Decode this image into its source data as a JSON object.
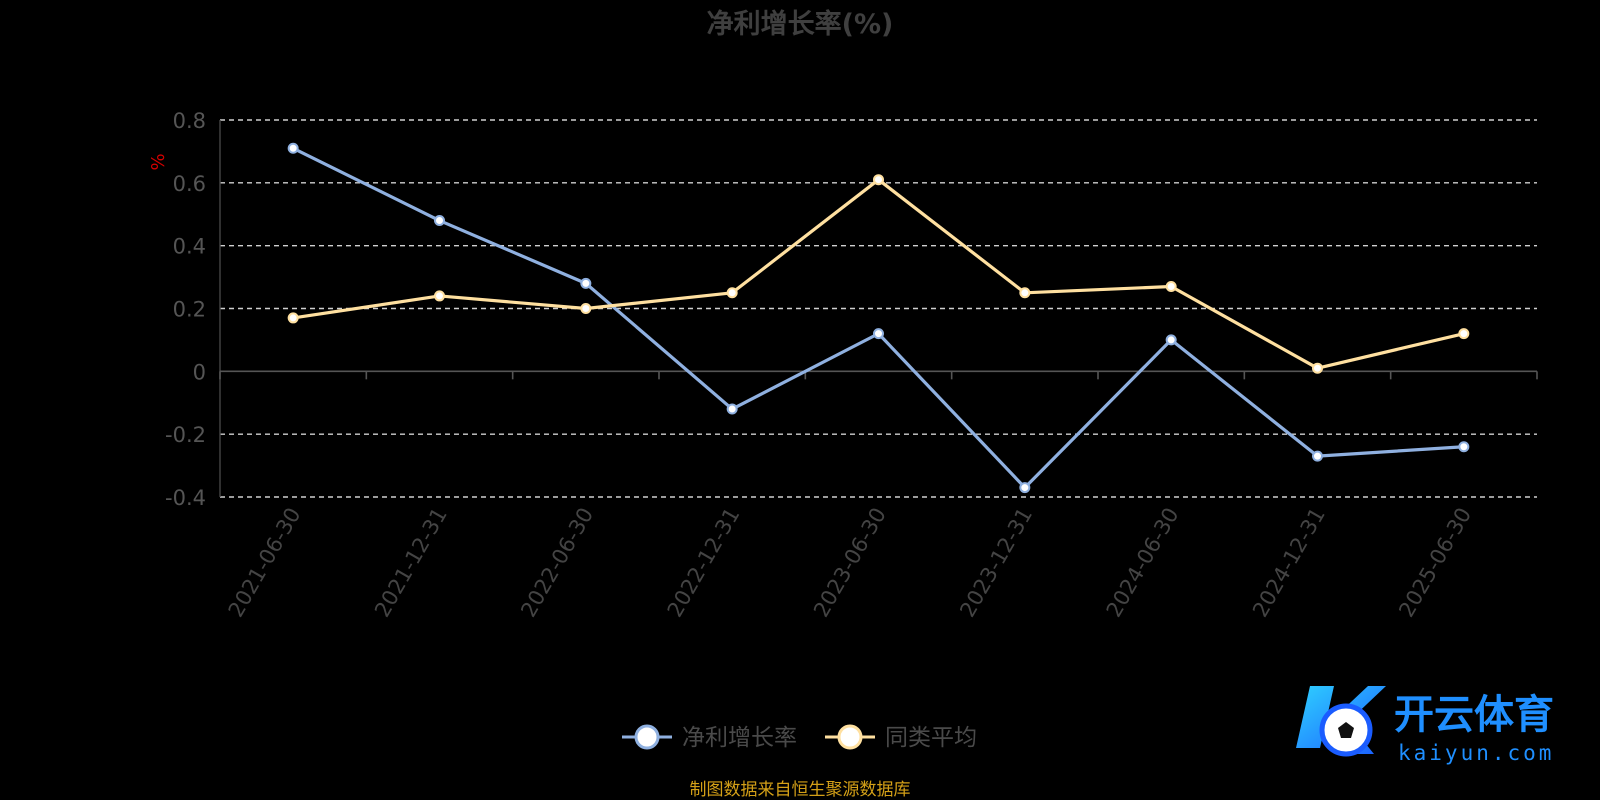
{
  "chart_data": {
    "type": "line",
    "title": "净利增长率(%)",
    "unit_label": "%",
    "categories": [
      "2021-06-30",
      "2021-12-31",
      "2022-06-30",
      "2022-12-31",
      "2023-06-30",
      "2023-12-31",
      "2024-06-30",
      "2024-12-31",
      "2025-06-30"
    ],
    "series": [
      {
        "name": "净利增长率",
        "color": "#8fb0e0",
        "values": [
          0.71,
          0.48,
          0.28,
          -0.12,
          0.12,
          -0.37,
          0.1,
          -0.27,
          -0.24
        ]
      },
      {
        "name": "同类平均",
        "color": "#ffe0a0",
        "values": [
          0.17,
          0.24,
          0.2,
          0.25,
          0.61,
          0.25,
          0.27,
          0.01,
          0.12
        ]
      }
    ],
    "yticks": [
      0.8,
      0.6,
      0.4,
      0.2,
      0,
      -0.2,
      -0.4
    ],
    "ytick_labels": [
      "0.8",
      "0.6",
      "0.4",
      "0.2",
      "0",
      "-0.2",
      "-0.4"
    ],
    "ylim": [
      -0.4,
      0.8
    ],
    "grid": true,
    "legend_position": "bottom"
  },
  "source_note": "制图数据来自恒生聚源数据库",
  "watermark": {
    "brand": "开云体育",
    "domain": "kaiyun.com"
  }
}
